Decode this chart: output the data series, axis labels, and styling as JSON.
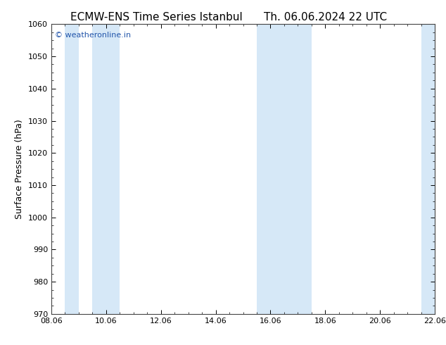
{
  "title_left": "ECMW-ENS Time Series Istanbul",
  "title_right": "Th. 06.06.2024 22 UTC",
  "ylabel": "Surface Pressure (hPa)",
  "ylim": [
    970,
    1060
  ],
  "yticks": [
    970,
    980,
    990,
    1000,
    1010,
    1020,
    1030,
    1040,
    1050,
    1060
  ],
  "xtick_labels": [
    "08.06",
    "10.06",
    "12.06",
    "14.06",
    "16.06",
    "18.06",
    "20.06",
    "22.06"
  ],
  "x_dates": [
    0,
    2,
    4,
    6,
    8,
    10,
    12,
    14
  ],
  "x_min": 0,
  "x_max": 14,
  "shaded_bands": [
    {
      "x_start": 0.5,
      "x_end": 1.0
    },
    {
      "x_start": 1.5,
      "x_end": 2.5
    },
    {
      "x_start": 7.5,
      "x_end": 8.5
    },
    {
      "x_start": 8.5,
      "x_end": 9.5
    },
    {
      "x_start": 13.5,
      "x_end": 14.0
    }
  ],
  "band_color": "#d6e8f7",
  "background_color": "#ffffff",
  "watermark": "© weatheronline.in",
  "watermark_color": "#2255aa",
  "title_fontsize": 11,
  "tick_fontsize": 8,
  "ylabel_fontsize": 9,
  "watermark_fontsize": 8
}
